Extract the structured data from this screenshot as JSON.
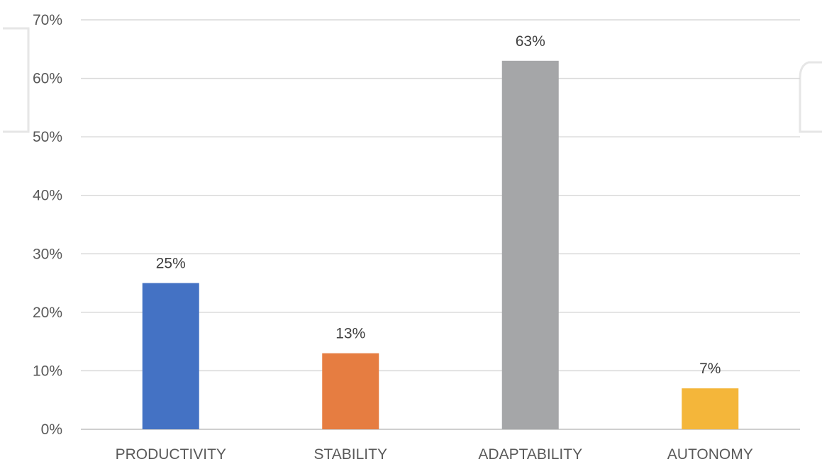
{
  "chart_data": {
    "type": "bar",
    "categories": [
      "PRODUCTIVITY",
      "STABILITY",
      "ADAPTABILITY",
      "AUTONOMY"
    ],
    "values": [
      25,
      13,
      63,
      7
    ],
    "value_labels": [
      "25%",
      "13%",
      "63%",
      "7%"
    ],
    "ylim": [
      0,
      70
    ],
    "yticks": [
      0,
      10,
      20,
      30,
      40,
      50,
      60,
      70
    ],
    "ytick_labels": [
      "0%",
      "10%",
      "20%",
      "30%",
      "40%",
      "50%",
      "60%",
      "70%"
    ],
    "bar_colors": [
      "#4472c4",
      "#e67d41",
      "#a5a6a8",
      "#f4b63a"
    ],
    "grid": true,
    "legend": "none"
  }
}
